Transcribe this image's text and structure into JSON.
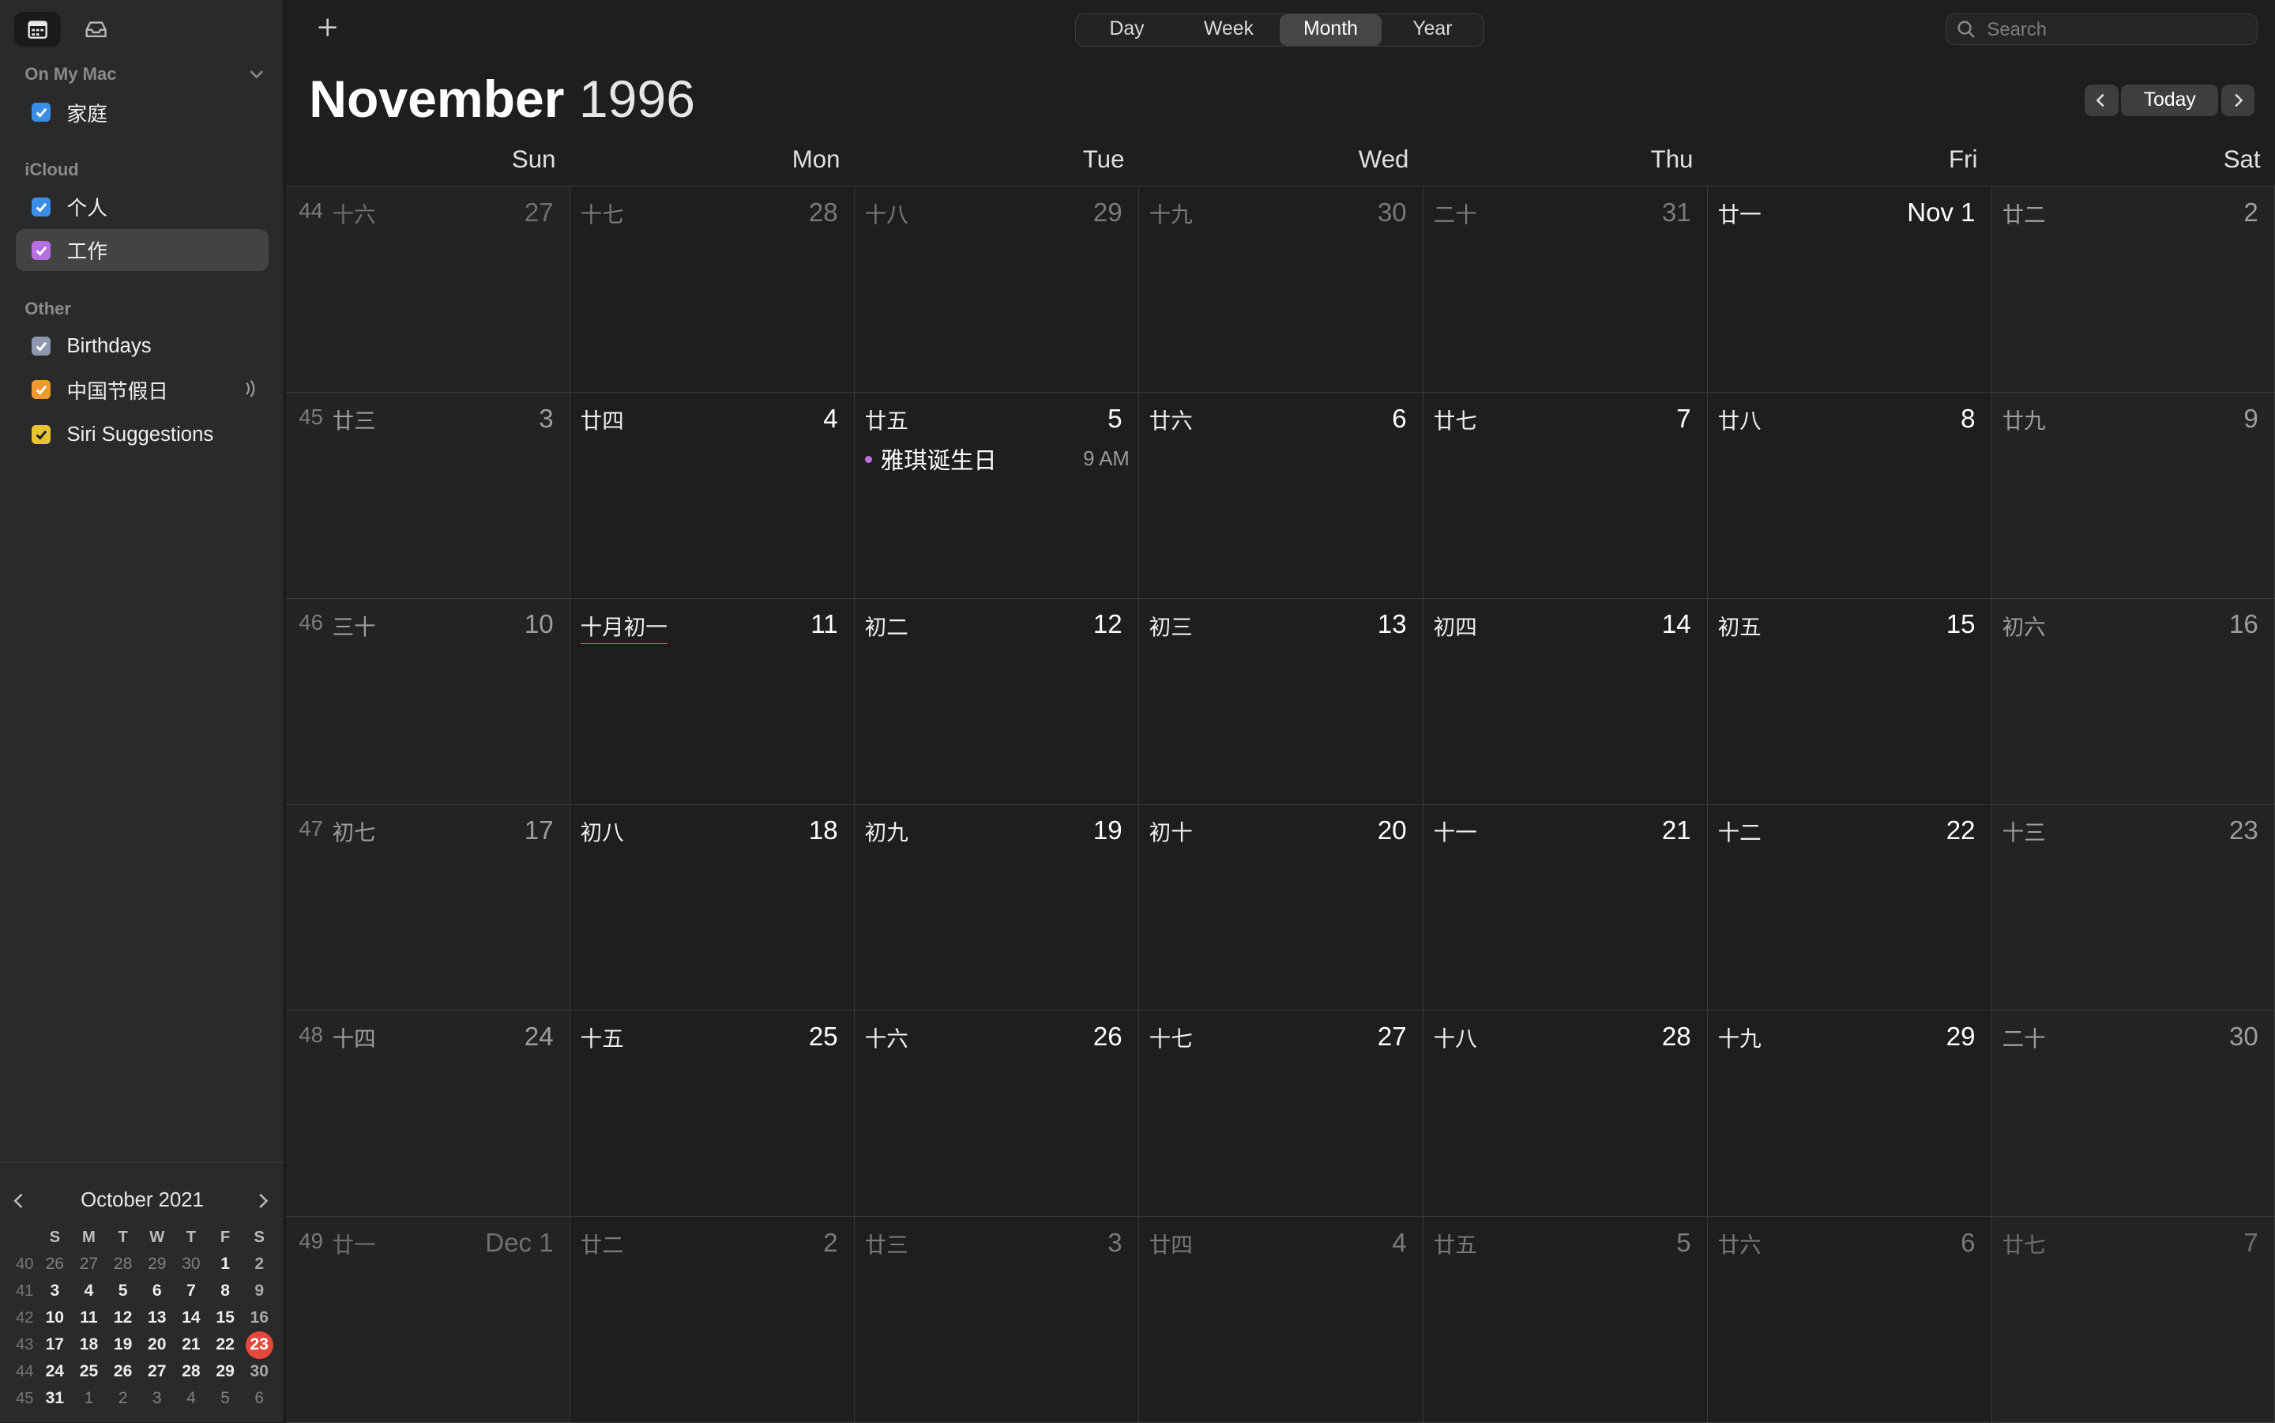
{
  "sidebar": {
    "groups": [
      {
        "label": "On My Mac",
        "calendars": [
          {
            "label": "家庭",
            "color": "#3b8ee8"
          }
        ]
      },
      {
        "label": "iCloud",
        "calendars": [
          {
            "label": "个人",
            "color": "#3b8ee8"
          },
          {
            "label": "工作",
            "color": "#b56fe0",
            "selected": true
          }
        ]
      },
      {
        "label": "Other",
        "calendars": [
          {
            "label": "Birthdays",
            "color": "#8d98ae"
          },
          {
            "label": "中国节假日",
            "color": "#ef9a2e",
            "subscribed": true
          },
          {
            "label": "Siri Suggestions",
            "color": "#e8c433"
          }
        ]
      }
    ]
  },
  "mini_calendar": {
    "title": "October 2021",
    "weekday_headers": [
      "S",
      "M",
      "T",
      "W",
      "T",
      "F",
      "S"
    ],
    "weeks": [
      {
        "wk": "40",
        "days": [
          {
            "d": "26",
            "out": true
          },
          {
            "d": "27",
            "out": true
          },
          {
            "d": "28",
            "out": true
          },
          {
            "d": "29",
            "out": true
          },
          {
            "d": "30",
            "out": true
          },
          {
            "d": "1"
          },
          {
            "d": "2"
          }
        ]
      },
      {
        "wk": "41",
        "days": [
          {
            "d": "3"
          },
          {
            "d": "4"
          },
          {
            "d": "5"
          },
          {
            "d": "6"
          },
          {
            "d": "7"
          },
          {
            "d": "8"
          },
          {
            "d": "9"
          }
        ]
      },
      {
        "wk": "42",
        "days": [
          {
            "d": "10"
          },
          {
            "d": "11"
          },
          {
            "d": "12"
          },
          {
            "d": "13"
          },
          {
            "d": "14"
          },
          {
            "d": "15"
          },
          {
            "d": "16"
          }
        ]
      },
      {
        "wk": "43",
        "days": [
          {
            "d": "17"
          },
          {
            "d": "18"
          },
          {
            "d": "19"
          },
          {
            "d": "20"
          },
          {
            "d": "21"
          },
          {
            "d": "22"
          },
          {
            "d": "23",
            "today": true
          }
        ]
      },
      {
        "wk": "44",
        "days": [
          {
            "d": "24"
          },
          {
            "d": "25"
          },
          {
            "d": "26"
          },
          {
            "d": "27"
          },
          {
            "d": "28"
          },
          {
            "d": "29"
          },
          {
            "d": "30"
          }
        ]
      },
      {
        "wk": "45",
        "days": [
          {
            "d": "31"
          },
          {
            "d": "1",
            "out": true
          },
          {
            "d": "2",
            "out": true
          },
          {
            "d": "3",
            "out": true
          },
          {
            "d": "4",
            "out": true
          },
          {
            "d": "5",
            "out": true
          },
          {
            "d": "6",
            "out": true
          }
        ]
      }
    ]
  },
  "toolbar": {
    "views": [
      "Day",
      "Week",
      "Month",
      "Year"
    ],
    "active_view": "Month",
    "search_placeholder": "Search",
    "today_label": "Today"
  },
  "header": {
    "month": "November",
    "year": "1996"
  },
  "weekdays": [
    "Sun",
    "Mon",
    "Tue",
    "Wed",
    "Thu",
    "Fri",
    "Sat"
  ],
  "weeks": [
    {
      "wk": "44",
      "days": [
        {
          "lunar": "十六",
          "num": "27",
          "out": true
        },
        {
          "lunar": "十七",
          "num": "28",
          "out": true
        },
        {
          "lunar": "十八",
          "num": "29",
          "out": true
        },
        {
          "lunar": "十九",
          "num": "30",
          "out": true
        },
        {
          "lunar": "二十",
          "num": "31",
          "out": true
        },
        {
          "lunar": "廿一",
          "num": "Nov 1"
        },
        {
          "lunar": "廿二",
          "num": "2"
        }
      ]
    },
    {
      "wk": "45",
      "days": [
        {
          "lunar": "廿三",
          "num": "3"
        },
        {
          "lunar": "廿四",
          "num": "4"
        },
        {
          "lunar": "廿五",
          "num": "5",
          "events": [
            {
              "title": "雅琪诞生日",
              "time": "9 AM"
            }
          ]
        },
        {
          "lunar": "廿六",
          "num": "6"
        },
        {
          "lunar": "廿七",
          "num": "7"
        },
        {
          "lunar": "廿八",
          "num": "8"
        },
        {
          "lunar": "廿九",
          "num": "9"
        }
      ]
    },
    {
      "wk": "46",
      "days": [
        {
          "lunar": "三十",
          "num": "10"
        },
        {
          "lunar": "十月初一",
          "num": "11",
          "festival": true
        },
        {
          "lunar": "初二",
          "num": "12"
        },
        {
          "lunar": "初三",
          "num": "13"
        },
        {
          "lunar": "初四",
          "num": "14"
        },
        {
          "lunar": "初五",
          "num": "15"
        },
        {
          "lunar": "初六",
          "num": "16"
        }
      ]
    },
    {
      "wk": "47",
      "days": [
        {
          "lunar": "初七",
          "num": "17"
        },
        {
          "lunar": "初八",
          "num": "18"
        },
        {
          "lunar": "初九",
          "num": "19"
        },
        {
          "lunar": "初十",
          "num": "20"
        },
        {
          "lunar": "十一",
          "num": "21"
        },
        {
          "lunar": "十二",
          "num": "22"
        },
        {
          "lunar": "十三",
          "num": "23"
        }
      ]
    },
    {
      "wk": "48",
      "days": [
        {
          "lunar": "十四",
          "num": "24"
        },
        {
          "lunar": "十五",
          "num": "25"
        },
        {
          "lunar": "十六",
          "num": "26"
        },
        {
          "lunar": "十七",
          "num": "27"
        },
        {
          "lunar": "十八",
          "num": "28"
        },
        {
          "lunar": "十九",
          "num": "29"
        },
        {
          "lunar": "二十",
          "num": "30"
        }
      ]
    },
    {
      "wk": "49",
      "days": [
        {
          "lunar": "廿一",
          "num": "Dec 1",
          "out": true
        },
        {
          "lunar": "廿二",
          "num": "2",
          "out": true
        },
        {
          "lunar": "廿三",
          "num": "3",
          "out": true
        },
        {
          "lunar": "廿四",
          "num": "4",
          "out": true
        },
        {
          "lunar": "廿五",
          "num": "5",
          "out": true
        },
        {
          "lunar": "廿六",
          "num": "6",
          "out": true
        },
        {
          "lunar": "廿七",
          "num": "7",
          "out": true
        }
      ]
    }
  ],
  "colors": {
    "event_dot": "#bf6fe0",
    "today_badge": "#e5483c",
    "festival_underline": "#e5483c"
  },
  "icons": {
    "sidebar_toggle": "calendar-list-icon",
    "inbox": "inbox-tray-icon",
    "add": "plus-icon",
    "search": "magnifier-icon",
    "subscribed": "broadcast-icon"
  }
}
